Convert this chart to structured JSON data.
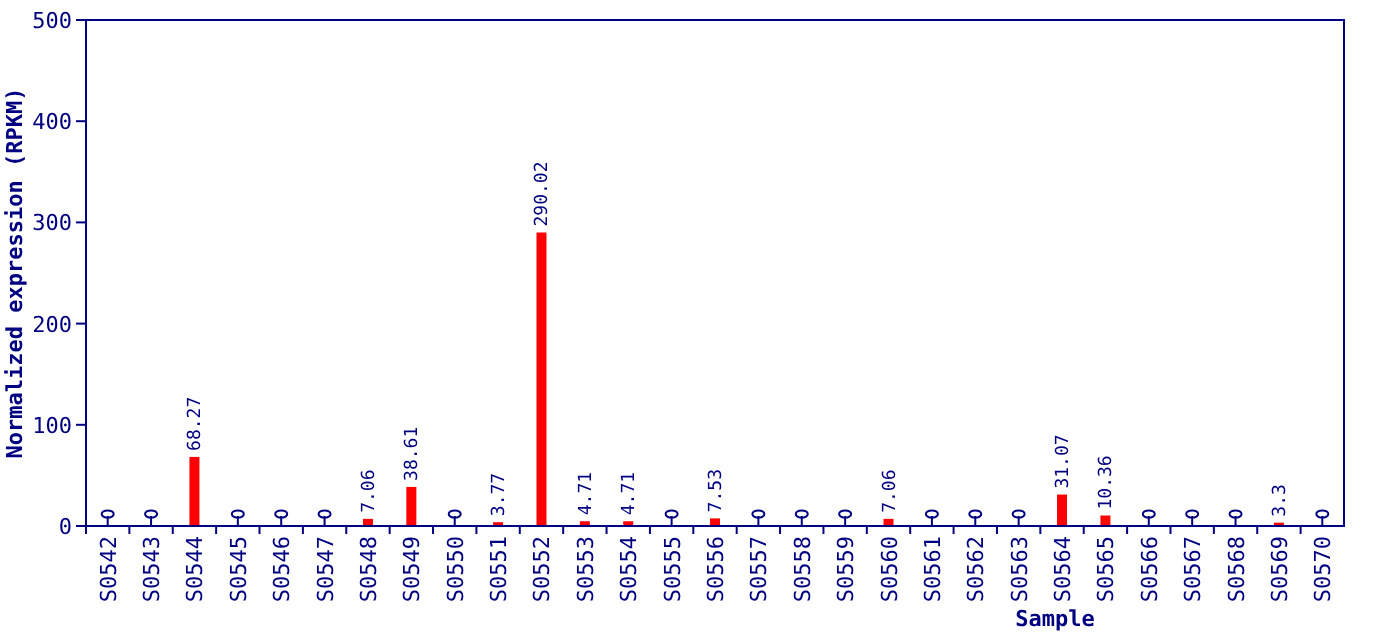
{
  "chart_data": {
    "type": "bar",
    "xlabel": "Sample",
    "ylabel": "Normalized expression (RPKM)",
    "categories": [
      "S0542",
      "S0543",
      "S0544",
      "S0545",
      "S0546",
      "S0547",
      "S0548",
      "S0549",
      "S0550",
      "S0551",
      "S0552",
      "S0553",
      "S0554",
      "S0555",
      "S0556",
      "S0557",
      "S0558",
      "S0559",
      "S0560",
      "S0561",
      "S0562",
      "S0563",
      "S0564",
      "S0565",
      "S0566",
      "S0567",
      "S0568",
      "S0569",
      "S0570"
    ],
    "values": [
      0,
      0,
      68.27,
      0,
      0,
      0,
      7.06,
      38.61,
      0,
      3.77,
      290.02,
      4.71,
      4.71,
      0,
      7.53,
      0,
      0,
      0,
      7.06,
      0,
      0,
      0,
      31.07,
      10.36,
      0,
      0,
      0,
      3.3,
      0
    ],
    "value_labels": [
      null,
      null,
      "68.27",
      null,
      null,
      null,
      "7.06",
      "38.61",
      null,
      "3.77",
      "290.02",
      "4.71",
      "4.71",
      null,
      "7.53",
      null,
      null,
      null,
      "7.06",
      null,
      null,
      null,
      "31.07",
      "10.36",
      null,
      null,
      null,
      "3.3",
      null
    ],
    "color": "#ff0000",
    "ylim": [
      0,
      500
    ],
    "yticks": [
      0,
      100,
      200,
      300,
      400,
      500
    ],
    "grid": false
  }
}
